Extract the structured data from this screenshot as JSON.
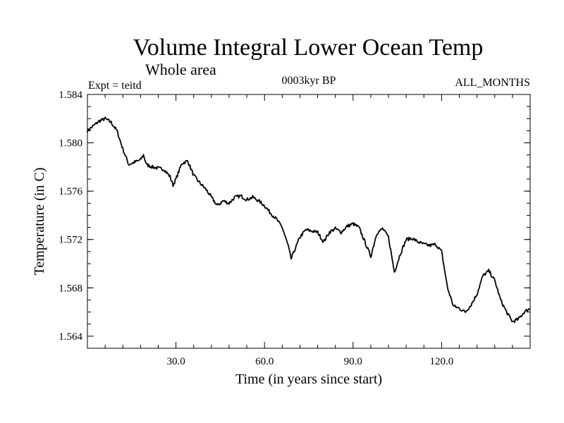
{
  "chart_data": {
    "type": "line",
    "title": "Volume Integral Lower Ocean Temp",
    "subtitle": "Whole area",
    "annotations": {
      "expt": "Expt = teitd",
      "period": "0003kyr BP",
      "months": "ALL_MONTHS"
    },
    "xlabel": "Time (in years since start)",
    "ylabel": "Temperature (in C)",
    "xlim": [
      0,
      150
    ],
    "ylim": [
      1.563,
      1.584
    ],
    "xticks": [
      30,
      60,
      90,
      120
    ],
    "xtick_labels": [
      "30.0",
      "60.0",
      "90.0",
      "120.0"
    ],
    "yticks": [
      1.564,
      1.568,
      1.572,
      1.576,
      1.58,
      1.584
    ],
    "ytick_labels": [
      "1.564",
      "1.568",
      "1.572",
      "1.576",
      "1.580",
      "1.584"
    ],
    "grid": false,
    "series": [
      {
        "name": "teitd",
        "x": [
          0,
          2,
          4,
          6,
          8,
          10,
          12,
          14,
          16,
          18,
          19,
          20,
          22,
          24,
          26,
          28,
          29,
          30,
          32,
          34,
          36,
          38,
          40,
          42,
          44,
          46,
          48,
          50,
          52,
          54,
          56,
          58,
          60,
          62,
          64,
          66,
          68,
          69,
          70,
          72,
          74,
          76,
          78,
          80,
          82,
          84,
          86,
          88,
          90,
          92,
          94,
          96,
          98,
          100,
          102,
          104,
          106,
          108,
          110,
          112,
          114,
          116,
          118,
          120,
          122,
          124,
          126,
          128,
          130,
          132,
          134,
          136,
          138,
          140,
          142,
          144,
          146,
          148,
          150
        ],
        "values": [
          1.581,
          1.5814,
          1.5818,
          1.582,
          1.5817,
          1.581,
          1.5795,
          1.5782,
          1.5784,
          1.5786,
          1.579,
          1.5782,
          1.578,
          1.5779,
          1.5778,
          1.5772,
          1.5765,
          1.577,
          1.5783,
          1.5785,
          1.5773,
          1.5767,
          1.5762,
          1.5755,
          1.5748,
          1.5752,
          1.575,
          1.5755,
          1.5756,
          1.5753,
          1.5755,
          1.5752,
          1.5748,
          1.5742,
          1.5737,
          1.573,
          1.5715,
          1.5704,
          1.571,
          1.5722,
          1.5728,
          1.5727,
          1.5726,
          1.5718,
          1.5726,
          1.5729,
          1.5726,
          1.5731,
          1.5733,
          1.573,
          1.5718,
          1.5706,
          1.5725,
          1.5729,
          1.5722,
          1.5693,
          1.5708,
          1.572,
          1.5721,
          1.5718,
          1.5716,
          1.5715,
          1.5716,
          1.571,
          1.568,
          1.5665,
          1.5663,
          1.566,
          1.5666,
          1.5675,
          1.569,
          1.5694,
          1.5686,
          1.567,
          1.566,
          1.5652,
          1.5654,
          1.566,
          1.5663
        ]
      }
    ]
  }
}
